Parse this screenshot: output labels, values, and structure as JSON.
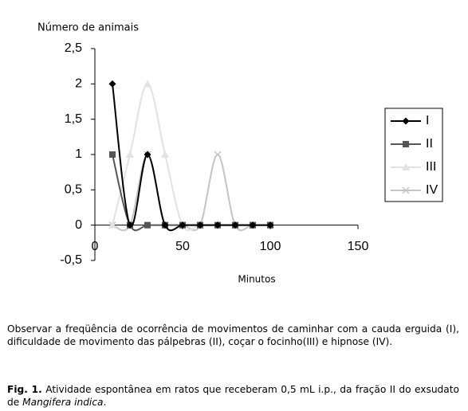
{
  "chart_data": {
    "type": "line",
    "smooth": true,
    "ylabel": "Número de animais",
    "xlabel": "Minutos",
    "x": [
      10,
      20,
      30,
      40,
      50,
      60,
      70,
      80,
      90,
      100
    ],
    "series": [
      {
        "name": "I",
        "color": "#000000",
        "marker": "diamond",
        "values": [
          2,
          0,
          1,
          0,
          0,
          0,
          0,
          0,
          0,
          0
        ]
      },
      {
        "name": "II",
        "color": "#555555",
        "marker": "square",
        "values": [
          1,
          0,
          0,
          0,
          0,
          0,
          0,
          0,
          0,
          0
        ]
      },
      {
        "name": "III",
        "color": "#e2e2e2",
        "marker": "triangle",
        "values": [
          0,
          1,
          2,
          1,
          0,
          0,
          0,
          0,
          0,
          0
        ]
      },
      {
        "name": "IV",
        "color": "#c4c4c4",
        "marker": "x",
        "values": [
          0,
          0,
          1,
          0,
          0,
          0,
          1,
          0,
          0,
          0
        ]
      }
    ],
    "xlim": [
      0,
      150
    ],
    "xticks": [
      0,
      50,
      100,
      150
    ],
    "ylim": [
      -0.5,
      2.5
    ],
    "yticks": [
      {
        "value": -0.5,
        "label": "-0,5"
      },
      0,
      {
        "value": 0.5,
        "label": "0,5"
      },
      1,
      {
        "value": 1.5,
        "label": "1,5"
      },
      2,
      {
        "value": 2.5,
        "label": "2,5"
      }
    ],
    "legend": "right"
  },
  "note": "Observar a freqüência de ocorrência de movimentos de caminhar com a cauda erguida (I), dificuldade de movimento das pálpebras (II), coçar o focinho(III) e hipnose (IV).",
  "caption": {
    "label": "Fig. 1.",
    "text": " Atividade espontânea em ratos que receberam 0,5 mL i.p., da fração II do exsudato de ",
    "species": "Mangifera indica",
    "end": "."
  }
}
